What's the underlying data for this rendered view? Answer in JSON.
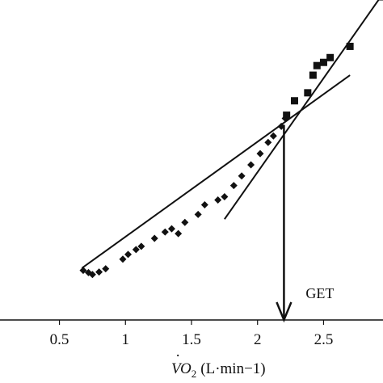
{
  "chart_data": {
    "type": "scatter",
    "x_ticks": [
      "0.5",
      "1",
      "1.5",
      "2",
      "2.5"
    ],
    "x_tick_values": [
      0.5,
      1,
      1.5,
      2,
      2.5
    ],
    "xlabel": {
      "main": "VO",
      "subscript": "2",
      "units": "(L·min−1)"
    },
    "xlim": [
      0.05,
      2.95
    ],
    "ylim": [
      0,
      100
    ],
    "series": [
      {
        "marker": "diamond",
        "points": [
          [
            0.68,
            15.5
          ],
          [
            0.72,
            14.8
          ],
          [
            0.75,
            14.2
          ],
          [
            0.8,
            15.0
          ],
          [
            0.85,
            16.0
          ],
          [
            0.98,
            19.0
          ],
          [
            1.02,
            20.5
          ],
          [
            1.08,
            22.0
          ],
          [
            1.12,
            23.0
          ],
          [
            1.22,
            25.5
          ],
          [
            1.3,
            27.5
          ],
          [
            1.35,
            28.5
          ],
          [
            1.4,
            27.0
          ],
          [
            1.45,
            30.5
          ],
          [
            1.55,
            33.0
          ],
          [
            1.6,
            36.0
          ],
          [
            1.7,
            37.5
          ],
          [
            1.75,
            38.5
          ],
          [
            1.82,
            42.0
          ],
          [
            1.88,
            45.0
          ],
          [
            1.95,
            48.5
          ],
          [
            2.02,
            52.0
          ],
          [
            2.08,
            55.5
          ],
          [
            2.12,
            57.5
          ],
          [
            2.18,
            60.5
          ],
          [
            2.21,
            63.0
          ]
        ]
      },
      {
        "marker": "square",
        "points": [
          [
            2.22,
            64.0
          ],
          [
            2.28,
            68.5
          ],
          [
            2.38,
            71.0
          ],
          [
            2.42,
            76.5
          ],
          [
            2.45,
            79.5
          ],
          [
            2.5,
            80.5
          ],
          [
            2.55,
            82.0
          ],
          [
            2.7,
            85.5
          ],
          [
            2.95,
            101.0
          ]
        ]
      }
    ],
    "fit_lines": [
      {
        "from": [
          0.67,
          16.2
        ],
        "to": [
          2.7,
          76.5
        ]
      },
      {
        "from": [
          1.75,
          31.5
        ],
        "to": [
          2.95,
          102.0
        ]
      }
    ],
    "annotation": {
      "text": "GET",
      "x": 2.2,
      "from_y": 61.0,
      "to_y": 0
    }
  }
}
